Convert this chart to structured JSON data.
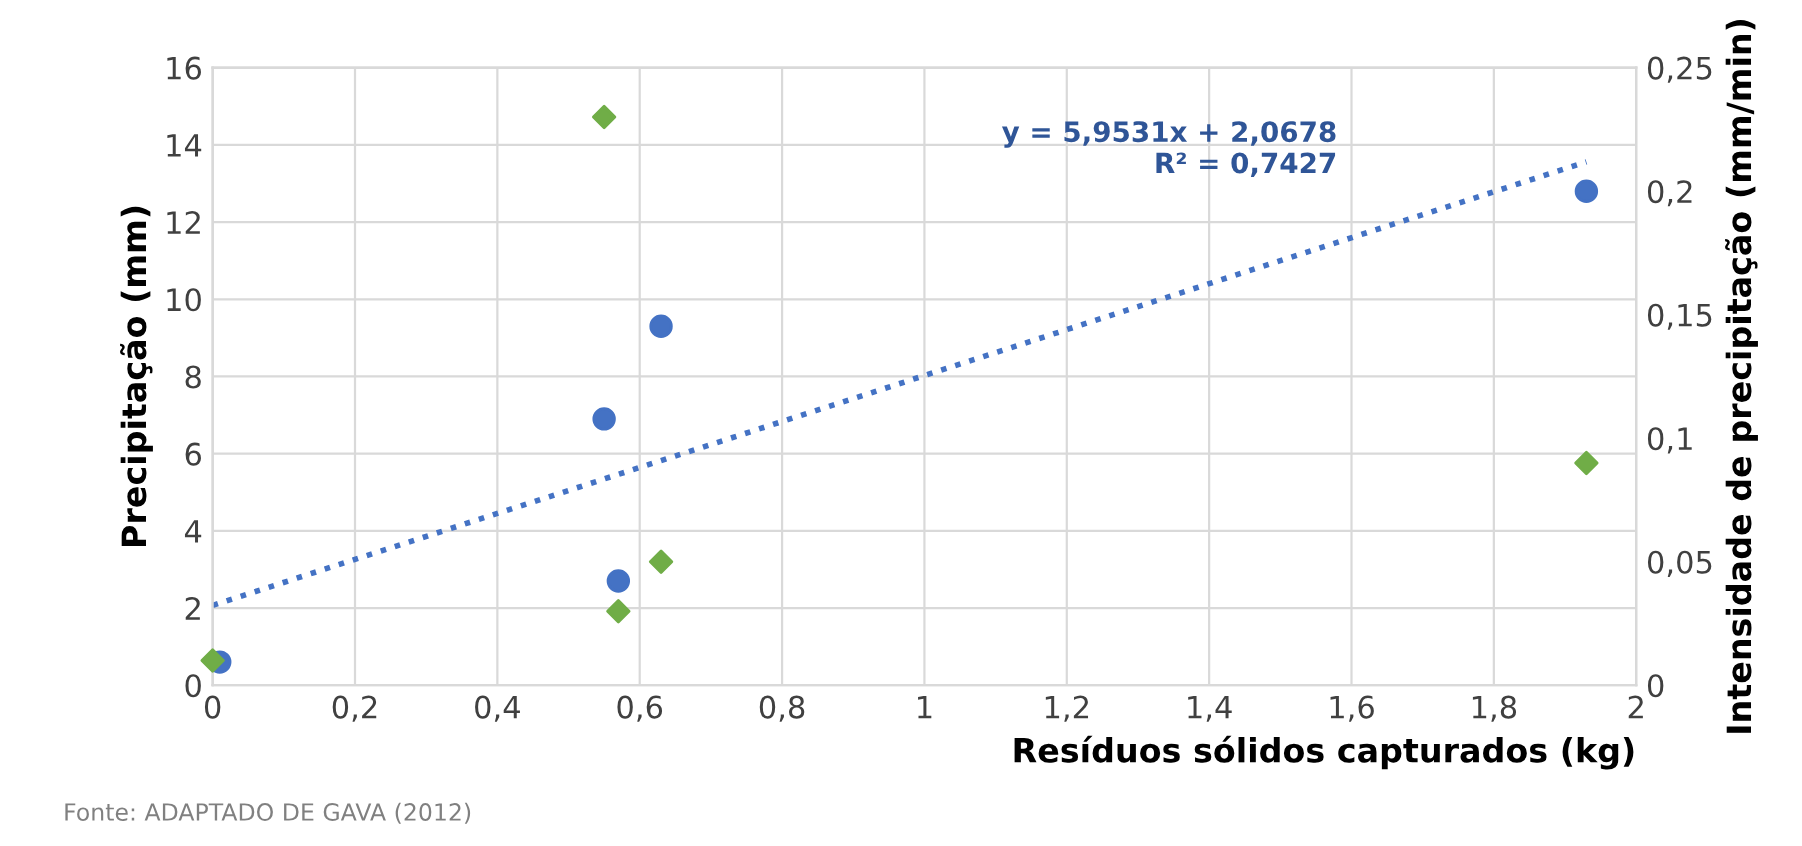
{
  "chart_data": {
    "type": "scatter",
    "xlabel": "Resíduos sólidos capturados (kg)",
    "ylabel": "Precipitação (mm)",
    "y2label": "Intensidade de precipitação (mm/min)",
    "series": [
      {
        "marker": "circle",
        "color": "#4472c4",
        "x": [
          0.01,
          0.55,
          0.57,
          0.63,
          1.93
        ],
        "values": [
          0.6,
          6.9,
          2.7,
          9.3,
          12.8
        ]
      },
      {
        "marker": "diamond",
        "color": "#70ad47",
        "axis": "y2",
        "x": [
          0,
          0.55,
          0.57,
          0.63,
          1.93
        ],
        "values": [
          0.01,
          0.23,
          0.03,
          0.05,
          0.09
        ]
      },
      {
        "type": "line",
        "line_style": "dotted",
        "color": "#4472c4",
        "x": [
          0,
          1.93
        ],
        "values": [
          2.07,
          13.56
        ]
      }
    ],
    "xlim": [
      0,
      2
    ],
    "xticks": [
      0,
      {
        "value": 0.2,
        "label": "0,2"
      },
      {
        "value": 0.4,
        "label": "0,4"
      },
      {
        "value": 0.6,
        "label": "0,6"
      },
      {
        "value": 0.8,
        "label": "0,8"
      },
      1,
      {
        "value": 1.2,
        "label": "1,2"
      },
      {
        "value": 1.4,
        "label": "1,4"
      },
      {
        "value": 1.6,
        "label": "1,6"
      },
      {
        "value": 1.8,
        "label": "1,8"
      },
      2
    ],
    "ylim": [
      0,
      16
    ],
    "yticks": [
      0,
      2,
      4,
      6,
      8,
      10,
      12,
      14,
      16
    ],
    "y2lim": [
      0,
      0.25
    ],
    "y2ticks": [
      0,
      {
        "value": 0.05,
        "label": "0,05"
      },
      {
        "value": 0.1,
        "label": "0,1"
      },
      {
        "value": 0.15,
        "label": "0,15"
      },
      {
        "value": 0.2,
        "label": "0,2"
      },
      {
        "value": 0.25,
        "label": "0,25"
      }
    ],
    "grid": true,
    "legend": false,
    "annotations": [
      "y = 5,9531x + 2,0678\nR² = 0,7427",
      "Fonte: ADAPTADO DE GAVA (2012)"
    ]
  }
}
